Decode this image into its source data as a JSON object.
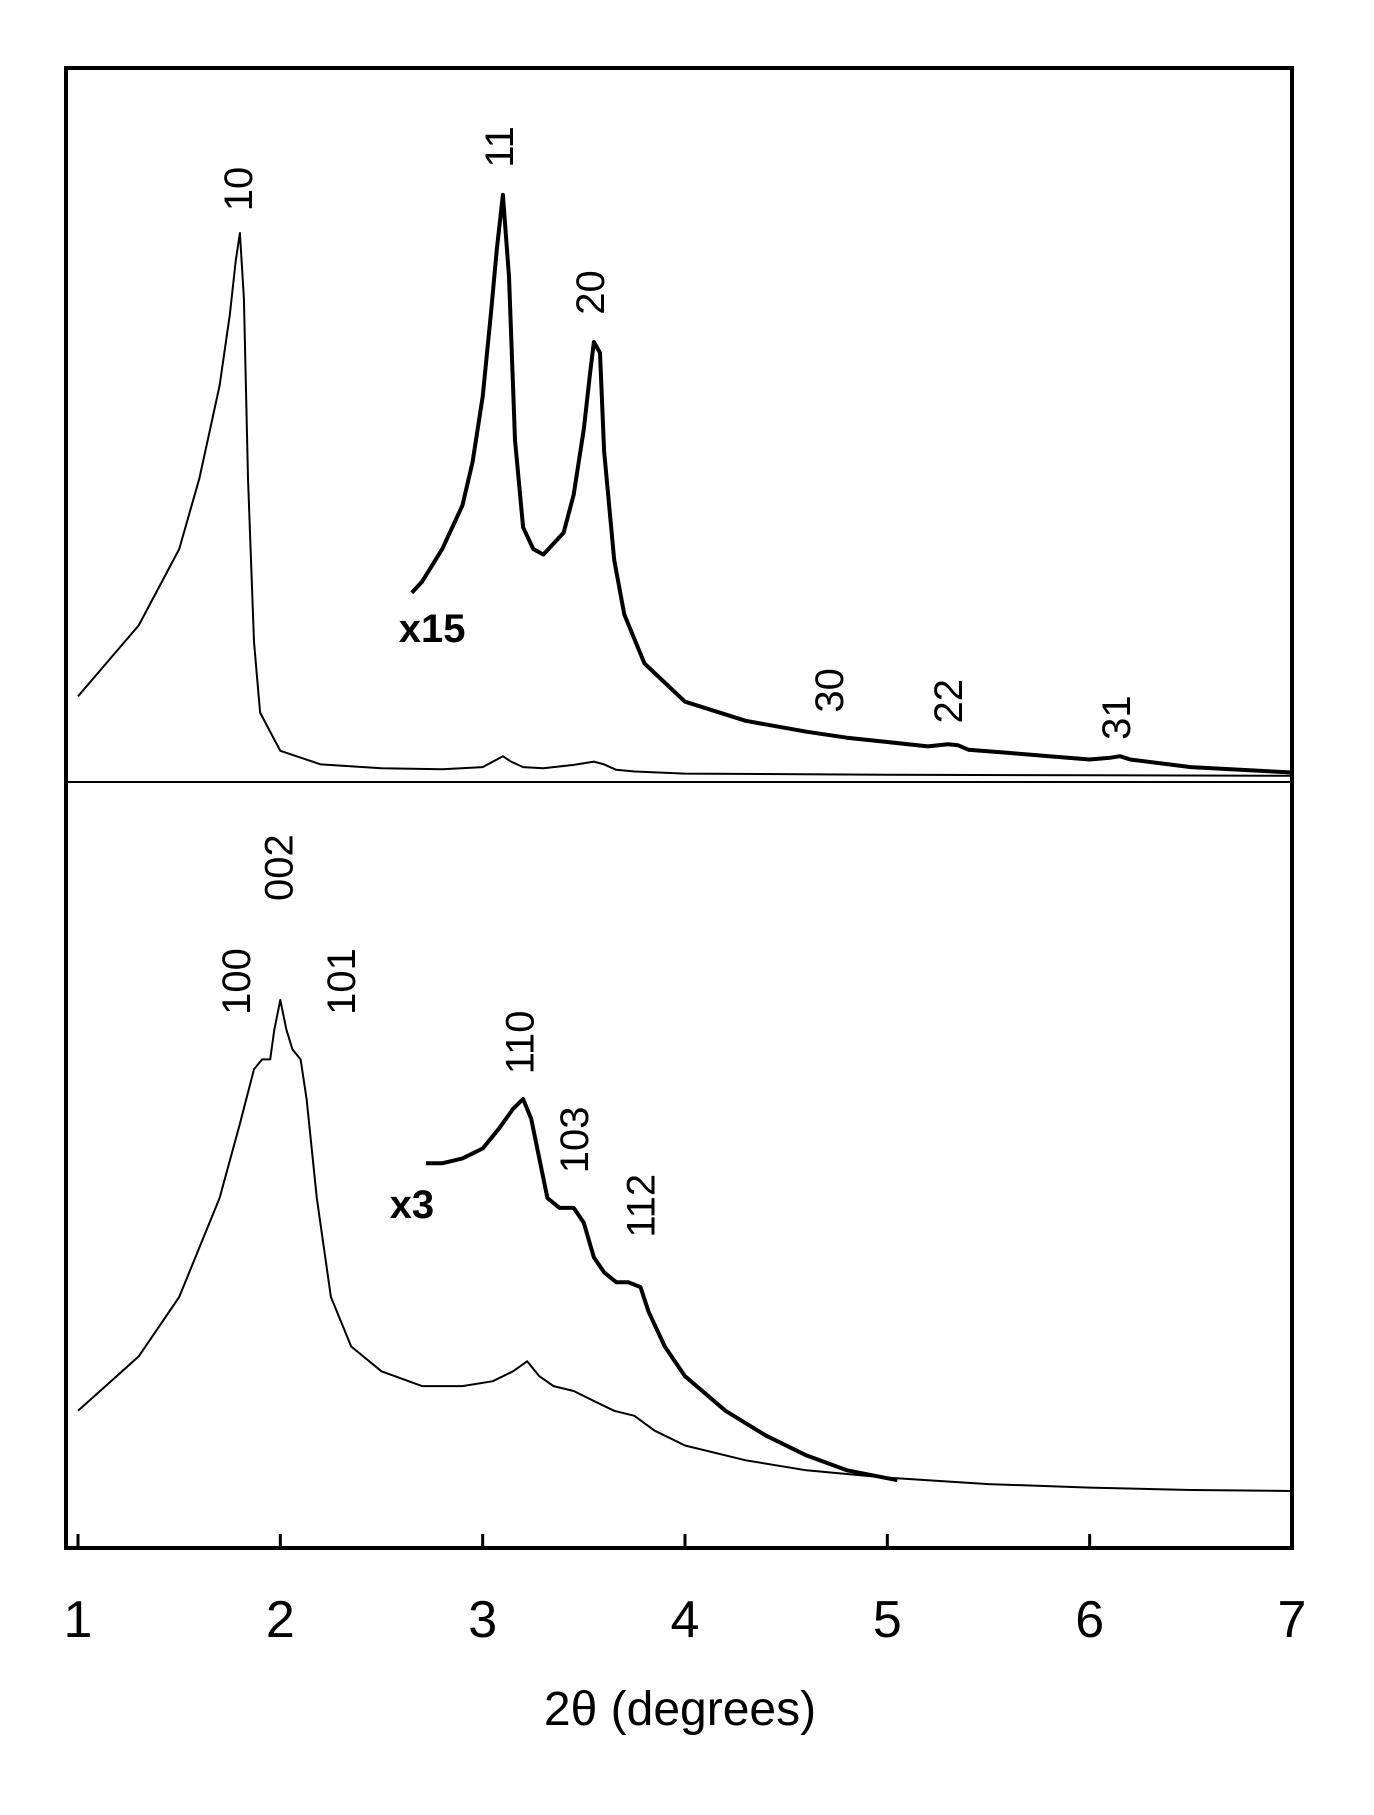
{
  "chart_data": {
    "type": "line",
    "xlabel": "2θ (degrees)",
    "xlim": [
      1,
      7
    ],
    "xticks": [
      1,
      2,
      3,
      4,
      5,
      6,
      7
    ],
    "grid": false,
    "panels": [
      {
        "id": "top",
        "series": [
          {
            "scale": "x1",
            "x": [
              1.0,
              1.3,
              1.5,
              1.6,
              1.7,
              1.75,
              1.78,
              1.8,
              1.82,
              1.84,
              1.87,
              1.9,
              2.0,
              2.2,
              2.5,
              2.8,
              3.0,
              3.06,
              3.1,
              3.14,
              3.2,
              3.3,
              3.45,
              3.55,
              3.6,
              3.66,
              3.75,
              4.0,
              5.0,
              6.0,
              7.0
            ],
            "y": [
              0.15,
              0.28,
              0.42,
              0.55,
              0.72,
              0.85,
              0.95,
              1.0,
              0.88,
              0.55,
              0.25,
              0.12,
              0.05,
              0.025,
              0.018,
              0.016,
              0.02,
              0.032,
              0.04,
              0.03,
              0.02,
              0.018,
              0.024,
              0.03,
              0.025,
              0.015,
              0.012,
              0.008,
              0.006,
              0.005,
              0.004
            ]
          },
          {
            "scale": "x15",
            "x": [
              2.65,
              2.7,
              2.8,
              2.9,
              2.95,
              3.0,
              3.04,
              3.07,
              3.1,
              3.13,
              3.16,
              3.2,
              3.25,
              3.3,
              3.4,
              3.45,
              3.5,
              3.53,
              3.55,
              3.58,
              3.6,
              3.65,
              3.7,
              3.8,
              4.0,
              4.3,
              4.6,
              4.8,
              5.0,
              5.2,
              5.3,
              5.35,
              5.4,
              5.6,
              5.8,
              6.0,
              6.1,
              6.15,
              6.2,
              6.5,
              7.0
            ],
            "y": [
              0.34,
              0.36,
              0.42,
              0.5,
              0.58,
              0.7,
              0.85,
              0.97,
              1.07,
              0.92,
              0.62,
              0.46,
              0.42,
              0.41,
              0.45,
              0.52,
              0.64,
              0.74,
              0.8,
              0.78,
              0.6,
              0.4,
              0.3,
              0.21,
              0.14,
              0.105,
              0.085,
              0.074,
              0.066,
              0.058,
              0.062,
              0.06,
              0.052,
              0.046,
              0.04,
              0.034,
              0.037,
              0.04,
              0.034,
              0.02,
              0.01
            ]
          }
        ],
        "peak_labels": [
          {
            "text": "10",
            "x": 1.86,
            "y": 1.04
          },
          {
            "text": "11",
            "x": 3.15,
            "y": 1.12
          },
          {
            "text": "20",
            "x": 3.6,
            "y": 0.85
          },
          {
            "text": "30",
            "x": 4.78,
            "y": 0.12
          },
          {
            "text": "22",
            "x": 5.37,
            "y": 0.1
          },
          {
            "text": "31",
            "x": 6.2,
            "y": 0.07
          }
        ],
        "scale_label": {
          "text": "x15",
          "x": 2.75,
          "y": 0.25
        }
      },
      {
        "id": "bottom",
        "series": [
          {
            "scale": "x1",
            "x": [
              1.0,
              1.3,
              1.5,
              1.7,
              1.8,
              1.87,
              1.91,
              1.95,
              1.97,
              2.0,
              2.03,
              2.06,
              2.1,
              2.13,
              2.18,
              2.25,
              2.35,
              2.5,
              2.7,
              2.9,
              3.05,
              3.15,
              3.22,
              3.28,
              3.35,
              3.45,
              3.55,
              3.65,
              3.75,
              3.85,
              4.0,
              4.3,
              4.6,
              5.0,
              5.5,
              6.0,
              6.5,
              7.0
            ],
            "y": [
              0.17,
              0.28,
              0.4,
              0.6,
              0.75,
              0.86,
              0.88,
              0.88,
              0.94,
              1.0,
              0.94,
              0.9,
              0.88,
              0.8,
              0.6,
              0.4,
              0.3,
              0.25,
              0.22,
              0.22,
              0.23,
              0.25,
              0.27,
              0.24,
              0.22,
              0.21,
              0.19,
              0.17,
              0.16,
              0.13,
              0.1,
              0.07,
              0.05,
              0.035,
              0.022,
              0.015,
              0.01,
              0.008
            ]
          },
          {
            "scale": "x3",
            "x": [
              2.72,
              2.8,
              2.9,
              3.0,
              3.08,
              3.15,
              3.2,
              3.24,
              3.28,
              3.32,
              3.38,
              3.45,
              3.5,
              3.55,
              3.6,
              3.66,
              3.72,
              3.78,
              3.82,
              3.9,
              4.0,
              4.2,
              4.4,
              4.6,
              4.8,
              5.05
            ],
            "y": [
              0.67,
              0.67,
              0.68,
              0.7,
              0.74,
              0.78,
              0.8,
              0.76,
              0.68,
              0.6,
              0.58,
              0.58,
              0.55,
              0.48,
              0.45,
              0.43,
              0.43,
              0.42,
              0.37,
              0.3,
              0.24,
              0.17,
              0.12,
              0.08,
              0.05,
              0.03
            ]
          }
        ],
        "peak_labels": [
          {
            "text": "100",
            "x": 1.85,
            "y": 0.97
          },
          {
            "text": "002",
            "x": 2.06,
            "y": 1.2
          },
          {
            "text": "101",
            "x": 2.37,
            "y": 0.97
          },
          {
            "text": "110",
            "x": 3.25,
            "y": 0.85
          },
          {
            "text": "103",
            "x": 3.52,
            "y": 0.65
          },
          {
            "text": "112",
            "x": 3.85,
            "y": 0.52
          }
        ],
        "scale_label": {
          "text": "x3",
          "x": 2.65,
          "y": 0.56
        }
      }
    ]
  }
}
